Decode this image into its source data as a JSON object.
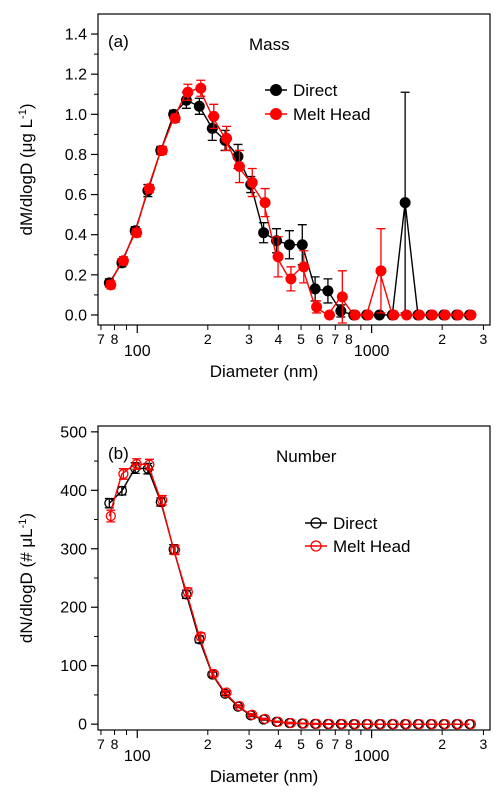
{
  "chart_data": [
    {
      "type": "line",
      "panel_label": "(a)",
      "title": "Mass",
      "xlabel": "Diameter (nm)",
      "ylabel_main": "dM/dlogD (μg L",
      "ylabel_sup": "-1",
      "ylabel_close": ")",
      "x_scale": "log",
      "xlim": [
        68,
        3200
      ],
      "ylim": [
        -0.05,
        1.5
      ],
      "x_major_ticks": [
        {
          "value": 100,
          "label": "100"
        },
        {
          "value": 1000,
          "label": "1000"
        }
      ],
      "x_minor_ticks": [
        {
          "value": 70,
          "label": "7"
        },
        {
          "value": 80,
          "label": "8"
        },
        {
          "value": 90,
          "label": ""
        },
        {
          "value": 200,
          "label": "2"
        },
        {
          "value": 300,
          "label": "3"
        },
        {
          "value": 400,
          "label": "4"
        },
        {
          "value": 500,
          "label": "5"
        },
        {
          "value": 600,
          "label": "6"
        },
        {
          "value": 700,
          "label": "7"
        },
        {
          "value": 800,
          "label": "8"
        },
        {
          "value": 900,
          "label": ""
        },
        {
          "value": 2000,
          "label": "2"
        },
        {
          "value": 3000,
          "label": "3"
        }
      ],
      "y_major_ticks": [
        {
          "value": 0,
          "label": "0.0"
        },
        {
          "value": 0.2,
          "label": "0.2"
        },
        {
          "value": 0.4,
          "label": "0.4"
        },
        {
          "value": 0.6,
          "label": "0.6"
        },
        {
          "value": 0.8,
          "label": "0.8"
        },
        {
          "value": 1.0,
          "label": "1.0"
        },
        {
          "value": 1.2,
          "label": "1.2"
        },
        {
          "value": 1.4,
          "label": "1.4"
        }
      ],
      "marker": "filled",
      "legend_position": "upper-right",
      "x": [
        76,
        86,
        98,
        111,
        126,
        143,
        162,
        184,
        209,
        237,
        269,
        305,
        346,
        393,
        446,
        506,
        574,
        651,
        739,
        839,
        952,
        1080,
        1225,
        1390,
        1577,
        1790,
        2031,
        2305,
        2616
      ],
      "series": [
        {
          "name": "Direct",
          "color": "#000000",
          "y": [
            0.16,
            0.26,
            0.42,
            0.62,
            0.82,
            1.0,
            1.07,
            1.04,
            0.93,
            0.87,
            0.79,
            0.65,
            0.41,
            0.37,
            0.35,
            0.35,
            0.13,
            0.12,
            0.02,
            0.0,
            0.0,
            0.0,
            0.0,
            0.56,
            0.0,
            0.0,
            0.0,
            0.0,
            0.0
          ],
          "err": [
            0.02,
            0.02,
            0.02,
            0.03,
            0.02,
            0.02,
            0.04,
            0.04,
            0.06,
            0.05,
            0.06,
            0.04,
            0.05,
            0.06,
            0.07,
            0.1,
            0.06,
            0.06,
            0.03,
            0.0,
            0.0,
            0.0,
            0.0,
            0.55,
            0.0,
            0.0,
            0.0,
            0.0,
            0.0
          ]
        },
        {
          "name": "Melt Head",
          "color": "#ff0000",
          "y": [
            0.15,
            0.27,
            0.41,
            0.63,
            0.82,
            0.98,
            1.11,
            1.13,
            0.99,
            0.88,
            0.74,
            0.66,
            0.56,
            0.29,
            0.18,
            0.24,
            0.04,
            0.0,
            0.09,
            0.0,
            0.0,
            0.22,
            0.0,
            0.0,
            0.0,
            0.0,
            0.0,
            0.0,
            0.0
          ],
          "err": [
            0.02,
            0.02,
            0.02,
            0.02,
            0.02,
            0.02,
            0.04,
            0.04,
            0.06,
            0.06,
            0.08,
            0.07,
            0.07,
            0.1,
            0.06,
            0.08,
            0.03,
            0.0,
            0.13,
            0.0,
            0.0,
            0.21,
            0.0,
            0.0,
            0.0,
            0.0,
            0.0,
            0.0,
            0.0
          ]
        }
      ]
    },
    {
      "type": "line",
      "panel_label": "(b)",
      "title": "Number",
      "xlabel": "Diameter (nm)",
      "ylabel_main": "dN/dlogD (# μL",
      "ylabel_sup": "-1",
      "ylabel_close": ")",
      "x_scale": "log",
      "xlim": [
        68,
        3200
      ],
      "ylim": [
        -10,
        510
      ],
      "x_major_ticks": [
        {
          "value": 100,
          "label": "100"
        },
        {
          "value": 1000,
          "label": "1000"
        }
      ],
      "x_minor_ticks": [
        {
          "value": 70,
          "label": "7"
        },
        {
          "value": 80,
          "label": "8"
        },
        {
          "value": 90,
          "label": ""
        },
        {
          "value": 200,
          "label": "2"
        },
        {
          "value": 300,
          "label": "3"
        },
        {
          "value": 400,
          "label": "4"
        },
        {
          "value": 500,
          "label": "5"
        },
        {
          "value": 600,
          "label": "6"
        },
        {
          "value": 700,
          "label": "7"
        },
        {
          "value": 800,
          "label": "8"
        },
        {
          "value": 900,
          "label": ""
        },
        {
          "value": 2000,
          "label": "2"
        },
        {
          "value": 3000,
          "label": "3"
        }
      ],
      "y_major_ticks": [
        {
          "value": 0,
          "label": "0"
        },
        {
          "value": 100,
          "label": "100"
        },
        {
          "value": 200,
          "label": "200"
        },
        {
          "value": 300,
          "label": "300"
        },
        {
          "value": 400,
          "label": "400"
        },
        {
          "value": 500,
          "label": "500"
        }
      ],
      "marker": "open",
      "legend_position": "middle-right",
      "x": [
        76,
        86,
        98,
        111,
        126,
        143,
        162,
        184,
        209,
        237,
        269,
        305,
        346,
        393,
        446,
        506,
        574,
        651,
        739,
        839,
        952,
        1080,
        1225,
        1390,
        1577,
        1790,
        2031,
        2305,
        2616
      ],
      "series": [
        {
          "name": "Direct",
          "color": "#000000",
          "y": [
            378,
            399,
            438,
            437,
            380,
            299,
            222,
            145,
            85,
            52,
            30,
            15,
            8,
            4,
            2,
            1,
            0.5,
            0.3,
            0.2,
            0.1,
            0,
            0,
            0,
            0,
            0,
            0,
            0,
            0,
            0
          ],
          "err": [
            8,
            7,
            9,
            9,
            7,
            8,
            7,
            6,
            4,
            3,
            2,
            2,
            1,
            1,
            1,
            0.5,
            0.5,
            0.3,
            0.2,
            0.1,
            0,
            0,
            0,
            0,
            0,
            0,
            0,
            0,
            0
          ]
        },
        {
          "name": "Melt Head",
          "color": "#ff0000",
          "y": [
            356,
            428,
            445,
            444,
            383,
            298,
            226,
            150,
            86,
            54,
            31,
            16,
            9,
            4,
            2,
            1,
            0.5,
            0.3,
            0.2,
            0.1,
            0,
            0,
            0,
            0,
            0,
            0,
            0,
            0,
            0
          ],
          "err": [
            10,
            9,
            9,
            9,
            8,
            8,
            7,
            6,
            4,
            3,
            2,
            2,
            1,
            1,
            1,
            0.5,
            0.5,
            0.3,
            0.2,
            0.1,
            0,
            0,
            0,
            0,
            0,
            0,
            0,
            0,
            0
          ]
        }
      ]
    }
  ]
}
